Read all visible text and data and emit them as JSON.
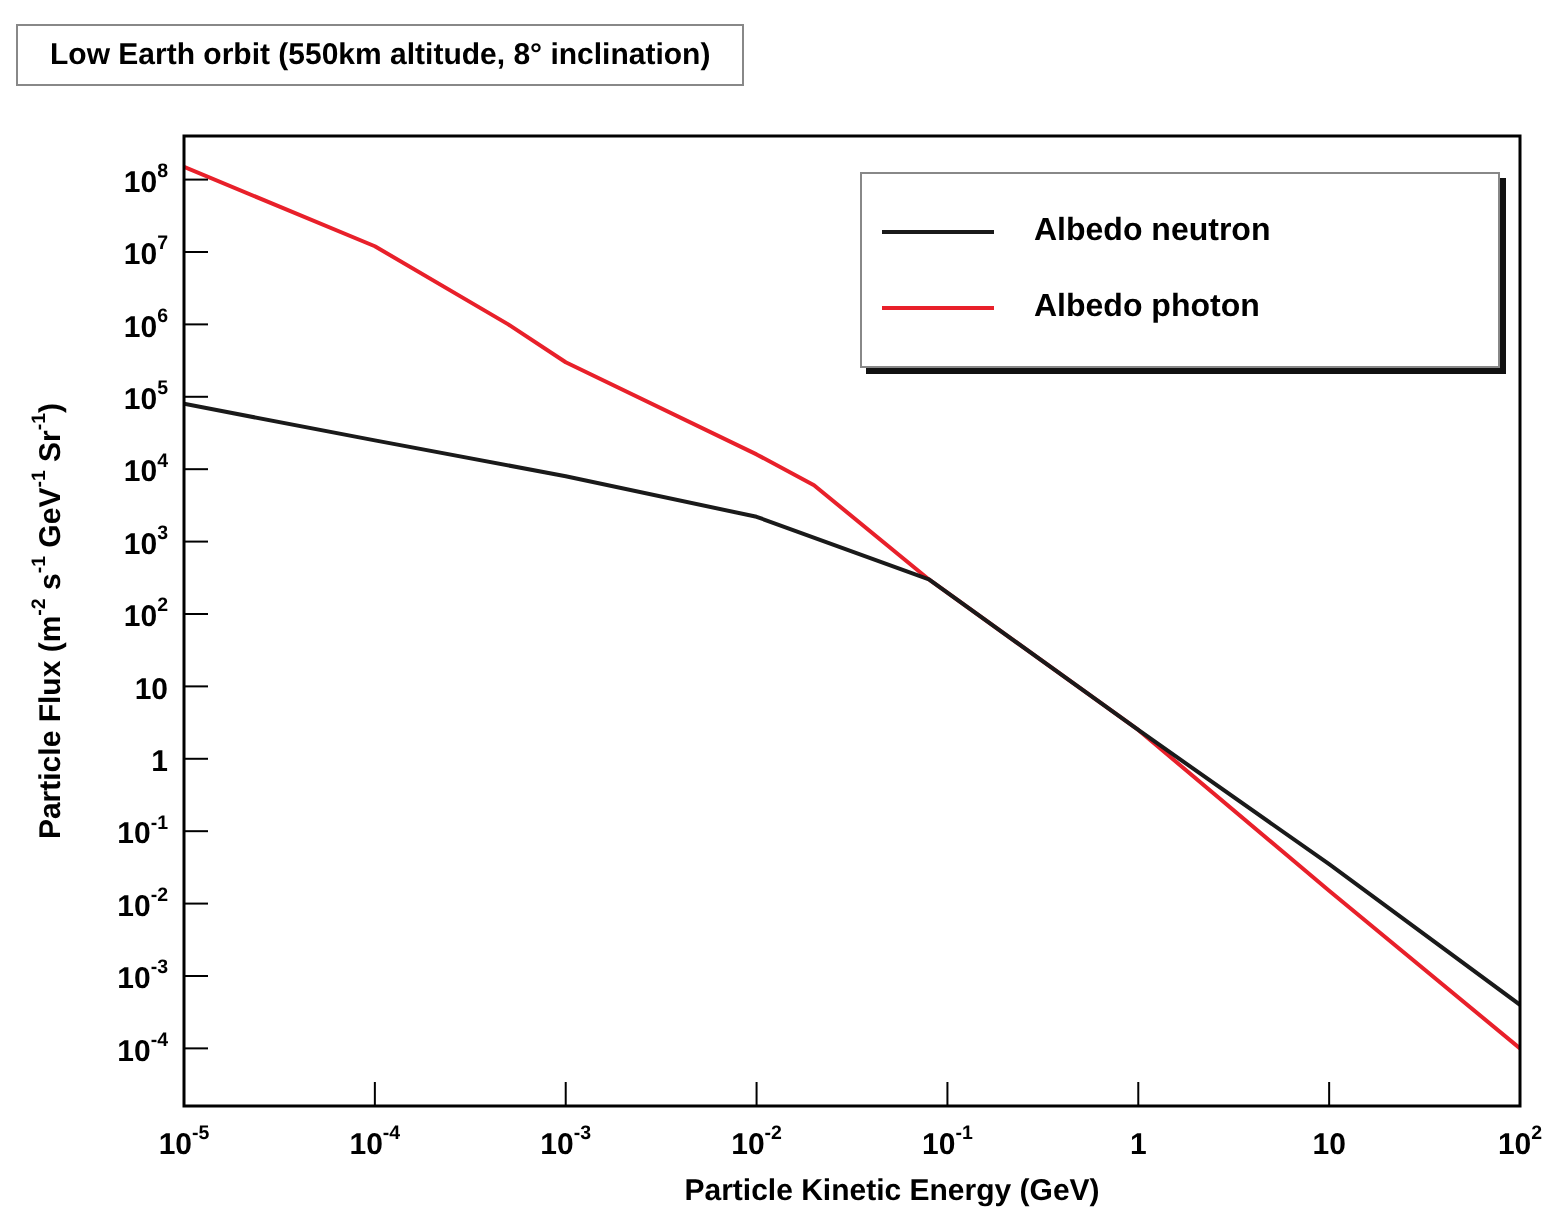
{
  "chart_data": {
    "type": "line",
    "title": "Low Earth orbit (550km altitude, 8° inclination)",
    "xlabel": "Particle Kinetic Energy (GeV)",
    "ylabel": "Particle Flux (m$^{-2}$ s$^{-1}$ GeV$^{-1}$ Sr$^{-1}$)",
    "log": "xy",
    "grid": false,
    "legend": "top right",
    "marker": "none",
    "line_style": "solid",
    "xlim": [
      1e-05,
      100
    ],
    "ylim": [
      1.6e-05,
      400000000.0
    ],
    "xticks": [
      {
        "value": 1e-05,
        "label": "10$^{-5}$"
      },
      {
        "value": 0.0001,
        "label": "10$^{-4}$"
      },
      {
        "value": 0.001,
        "label": "10$^{-3}$"
      },
      {
        "value": 0.01,
        "label": "10$^{-2}$"
      },
      {
        "value": 0.1,
        "label": "10$^{-1}$"
      },
      1,
      10,
      {
        "value": 100,
        "label": "10$^{2}$"
      }
    ],
    "yticks": [
      {
        "value": 0.0001,
        "label": "10$^{-4}$"
      },
      {
        "value": 0.001,
        "label": "10$^{-3}$"
      },
      {
        "value": 0.01,
        "label": "10$^{-2}$"
      },
      {
        "value": 0.1,
        "label": "10$^{-1}$"
      },
      1,
      10,
      {
        "value": 100,
        "label": "10$^{2}$"
      },
      {
        "value": 1000,
        "label": "10$^{3}$"
      },
      {
        "value": 10000.0,
        "label": "10$^{4}$"
      },
      {
        "value": 100000.0,
        "label": "10$^{5}$"
      },
      {
        "value": 1000000.0,
        "label": "10$^{6}$"
      },
      {
        "value": 10000000.0,
        "label": "10$^{7}$"
      },
      {
        "value": 100000000.0,
        "label": "10$^{8}$"
      }
    ],
    "series": [
      {
        "name": "Albedo neutron",
        "color": "#1a1a1a",
        "x": [
          1e-05,
          0.0001,
          0.001,
          0.01,
          0.08,
          1,
          10,
          100
        ],
        "values": [
          80000.0,
          25000.0,
          8000.0,
          2200.0,
          300,
          2.5,
          0.035,
          0.0004
        ]
      },
      {
        "name": "Albedo photon",
        "color": "#e8202a",
        "x": [
          1e-05,
          0.0001,
          0.0005,
          0.001,
          0.01,
          0.02,
          0.08,
          1,
          10,
          100
        ],
        "values": [
          150000000.0,
          12000000.0,
          1000000.0,
          300000.0,
          16000.0,
          6000.0,
          300,
          2.5,
          0.015,
          0.0001
        ]
      }
    ]
  }
}
